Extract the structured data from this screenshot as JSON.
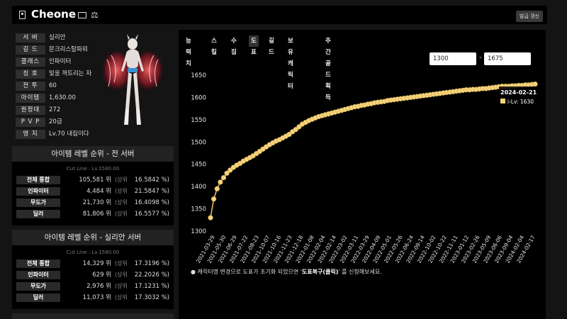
{
  "header": {
    "name": "Cheone",
    "update_button": "발급 갱신"
  },
  "profile": {
    "rows": [
      {
        "label": "서 버",
        "value": "실리안"
      },
      {
        "label": "길 드",
        "value": "문크리스탈파워"
      },
      {
        "label": "클래스",
        "value": "인파이터"
      },
      {
        "label": "칭 호",
        "value": "빛을 꺼트리는 자"
      },
      {
        "label": "전 투",
        "value": "60"
      },
      {
        "label": "아이템",
        "value": "1,630.00"
      },
      {
        "label": "원정대",
        "value": "272"
      },
      {
        "label": "P V P",
        "value": "20급"
      },
      {
        "label": "영 지",
        "value": "Lv.70 내집이다"
      }
    ]
  },
  "rank_all": {
    "title": "아이템 레벨 순위 - 전 서버",
    "cutline": "Cut Line : Lv.1580.00",
    "rows": [
      {
        "cat": "전체 통합",
        "pos": "105,581 위",
        "up": "(상위",
        "pct": "16.5842 %)"
      },
      {
        "cat": "인파이터",
        "pos": "4,484 위",
        "up": "(상위",
        "pct": "21.5847 %)"
      },
      {
        "cat": "무도가",
        "pos": "21,730 위",
        "up": "(상위",
        "pct": "16.4098 %)"
      },
      {
        "cat": "딜러",
        "pos": "81,806 위",
        "up": "(상위",
        "pct": "16.5577 %)"
      }
    ]
  },
  "rank_server": {
    "title": "아이템 레벨 순위 - 실리안 서버",
    "cutline": "Cut Line : Lv.1580.00",
    "rows": [
      {
        "cat": "전체 통합",
        "pos": "14,329 위",
        "up": "(상위",
        "pct": "17.3196 %)"
      },
      {
        "cat": "인파이터",
        "pos": "629 위",
        "up": "(상위",
        "pct": "22.2026 %)"
      },
      {
        "cat": "무도가",
        "pos": "2,976 위",
        "up": "(상위",
        "pct": "17.1231 %)"
      },
      {
        "cat": "딜러",
        "pos": "11,073 위",
        "up": "(상위",
        "pct": "17.3032 %)"
      }
    ]
  },
  "tabs": [
    {
      "label": "능력치",
      "active": false
    },
    {
      "label": "스킬",
      "active": false
    },
    {
      "label": "수집",
      "active": false
    },
    {
      "label": "도표",
      "active": true
    },
    {
      "label": "길드",
      "active": false
    },
    {
      "label": "보유 캐릭터",
      "active": false
    },
    {
      "label": "주간골드획득",
      "active": false
    }
  ],
  "range": {
    "min": "1300",
    "max": "1675",
    "dash": "-"
  },
  "footnote": {
    "prefix": "● 캐릭터명 변경으로 도표가 초기화 되었으면 '",
    "bold": "도표복구(클릭)",
    "suffix": "' 를 신청해보세요."
  },
  "colors": {
    "accent": "#f5d27a",
    "line": "#e9c56a"
  },
  "chart_data": {
    "type": "line",
    "title": "",
    "xlabel": "",
    "ylabel": "",
    "ylim": [
      1300,
      1650
    ],
    "yticks": [
      1300,
      1350,
      1400,
      1450,
      1500,
      1550,
      1600,
      1650
    ],
    "grid": false,
    "xtick_labels": [
      "2021-03-29",
      "2021-05-30",
      "2021-06-29",
      "2021-07-22",
      "2021-08-23",
      "2021-10-07",
      "2021-10-16",
      "2021-11-23",
      "2021-12-18",
      "2022-01-08",
      "2022-02-04",
      "2022-02-14",
      "2022-03-02",
      "2022-03-11",
      "2022-03-29",
      "2022-04-09",
      "2022-05-01",
      "2022-05-26",
      "2022-06-24",
      "2022-09-14",
      "2022-10-02",
      "2022-10-22",
      "2022-11-11",
      "2023-01-12",
      "2023-02-26",
      "2023-05-09",
      "2023-06-06",
      "2023-09-04",
      "2024-02-04",
      "2024-02-17"
    ],
    "series": [
      {
        "name": "i-Lv",
        "values": [
          1330,
          1372,
          1395,
          1410,
          1420,
          1430,
          1437,
          1443,
          1448,
          1452,
          1457,
          1461,
          1465,
          1469,
          1474,
          1479,
          1484,
          1489,
          1494,
          1498,
          1502,
          1505,
          1509,
          1513,
          1517,
          1523,
          1528,
          1534,
          1540,
          1544,
          1548,
          1551,
          1554,
          1557,
          1559,
          1561,
          1563,
          1565,
          1567,
          1569,
          1571,
          1573,
          1575,
          1577,
          1579,
          1580,
          1582,
          1583,
          1585,
          1586,
          1588,
          1589,
          1590,
          1591,
          1593,
          1594,
          1595,
          1596,
          1597,
          1598,
          1599,
          1600,
          1601,
          1602,
          1603,
          1604,
          1605,
          1606,
          1607,
          1608,
          1609,
          1610,
          1611,
          1612,
          1613,
          1614,
          1615,
          1616,
          1617,
          1617,
          1618,
          1618,
          1619,
          1620,
          1620,
          1621,
          1622,
          1623,
          1624,
          1625,
          1625,
          1625,
          1626,
          1626,
          1627,
          1627,
          1628,
          1628,
          1629,
          1630
        ]
      }
    ],
    "tooltip": {
      "date": "2024-02-21",
      "label": "i-Lv",
      "value": 1630
    },
    "legend": "top-right"
  }
}
